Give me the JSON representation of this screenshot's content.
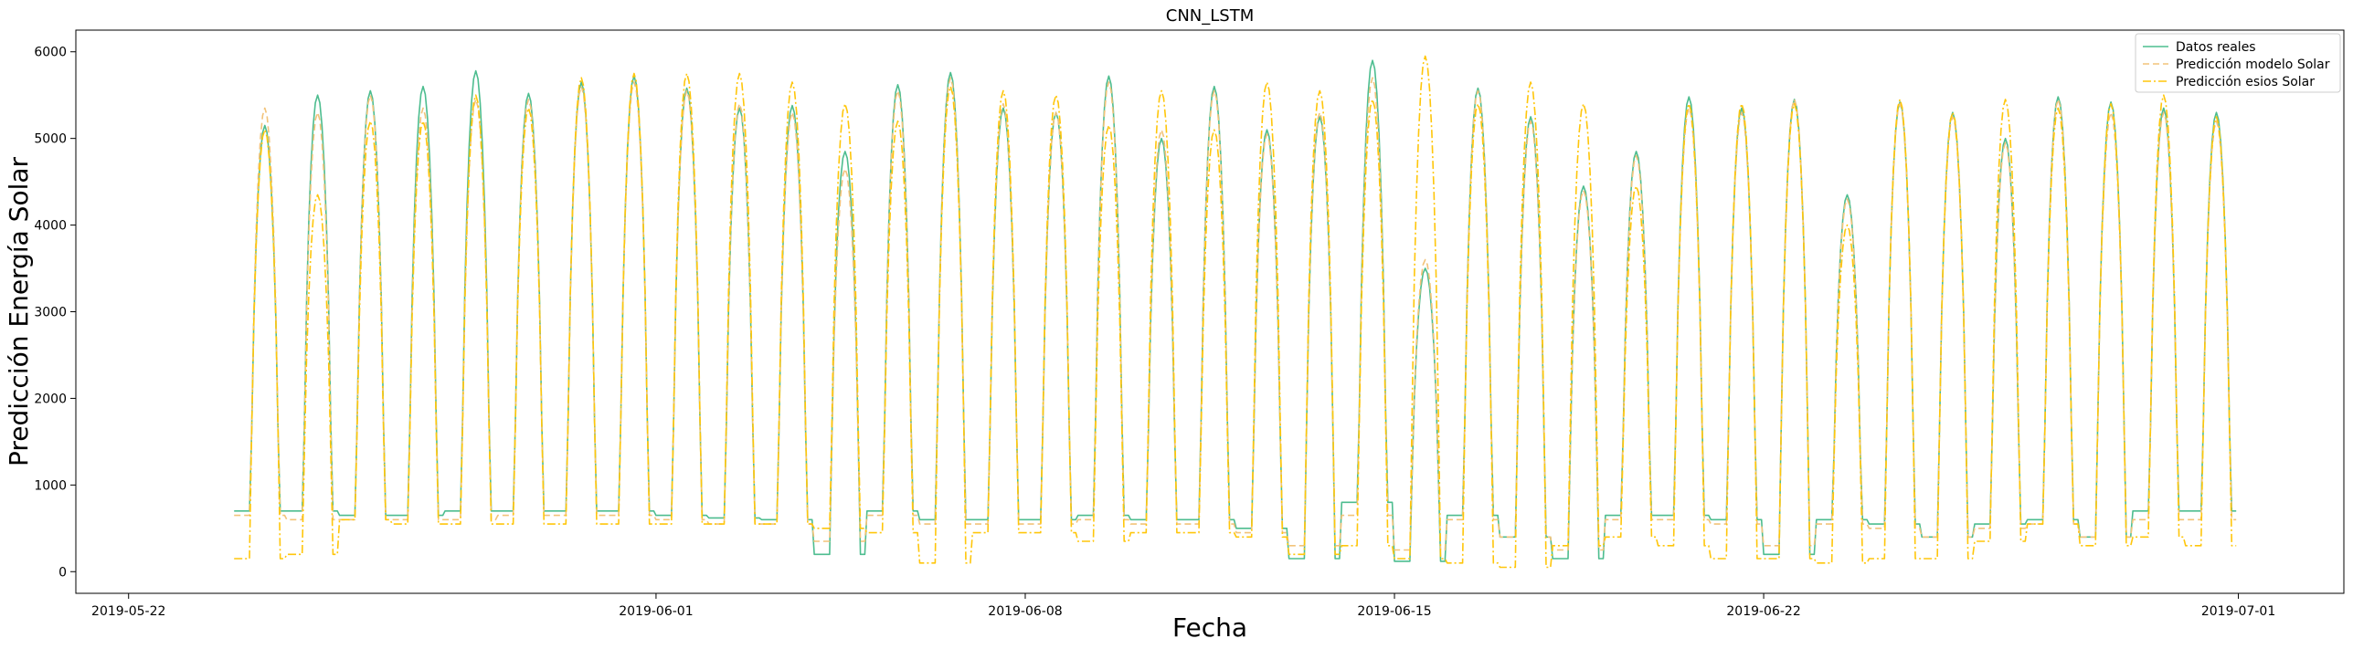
{
  "chart_data": {
    "type": "line",
    "title": "CNN_LSTM",
    "xlabel": "Fecha",
    "ylabel": "Predicción Energía Solar",
    "xlim": [
      "2019-05-21",
      "2019-07-03"
    ],
    "ylim": [
      -250,
      6250
    ],
    "x_ticks": [
      "2019-05-22",
      "2019-06-01",
      "2019-06-08",
      "2019-06-15",
      "2019-06-22",
      "2019-07-01"
    ],
    "y_ticks": [
      0,
      1000,
      2000,
      3000,
      4000,
      5000,
      6000
    ],
    "x_range": [
      "2019-05-24",
      "2019-06-30"
    ],
    "sampling": "hourly",
    "legend_position": "top-right",
    "series": [
      {
        "name": "Datos reales",
        "color": "#4dbd8f",
        "style": "solid",
        "daily_peaks": [
          5150,
          5500,
          5550,
          5600,
          5780,
          5520,
          5650,
          5720,
          5580,
          5350,
          5380,
          4850,
          5620,
          5760,
          5350,
          5300,
          5720,
          5000,
          5600,
          5100,
          5250,
          5900,
          3500,
          5580,
          5250,
          4450,
          4850,
          5480,
          5350,
          5450,
          4350,
          5420,
          5300,
          5000,
          5480,
          5420,
          5350,
          5300
        ],
        "night_values": [
          700,
          700,
          650,
          650,
          700,
          700,
          700,
          700,
          650,
          620,
          600,
          200,
          700,
          600,
          600,
          600,
          650,
          600,
          600,
          500,
          150,
          800,
          120,
          650,
          400,
          150,
          650,
          650,
          600,
          200,
          600,
          550,
          400,
          550,
          600,
          400,
          700,
          700
        ]
      },
      {
        "name": "Predicción modelo Solar",
        "color": "#f2c37a",
        "style": "dashed",
        "daily_peaks": [
          5350,
          5300,
          5500,
          5350,
          5450,
          5450,
          5600,
          5650,
          5550,
          5400,
          5300,
          4650,
          5550,
          5700,
          5400,
          5300,
          5650,
          5100,
          5550,
          5050,
          5300,
          5700,
          3600,
          5550,
          5200,
          4400,
          4800,
          5350,
          5300,
          5450,
          4300,
          5400,
          5250,
          4950,
          5450,
          5300,
          5300,
          5200
        ],
        "night_values": [
          650,
          600,
          600,
          600,
          600,
          650,
          650,
          650,
          600,
          550,
          550,
          350,
          650,
          550,
          550,
          550,
          600,
          550,
          550,
          450,
          300,
          650,
          250,
          600,
          400,
          250,
          600,
          600,
          550,
          300,
          550,
          500,
          400,
          500,
          550,
          400,
          600,
          600
        ]
      },
      {
        "name": "Predicción esios Solar",
        "color": "#ffc60b",
        "style": "dashdot",
        "daily_peaks": [
          5100,
          4350,
          5200,
          5200,
          5500,
          5350,
          5700,
          5750,
          5750,
          5750,
          5650,
          5400,
          5200,
          5600,
          5550,
          5500,
          5150,
          5550,
          5100,
          5650,
          5550,
          5450,
          5950,
          5400,
          5650,
          5400,
          4450,
          5400,
          5400,
          5400,
          4000,
          5450,
          5300,
          5450,
          5350,
          5400,
          5500,
          5250
        ],
        "night_values": [
          150,
          200,
          600,
          550,
          550,
          550,
          550,
          550,
          550,
          550,
          550,
          500,
          450,
          100,
          450,
          450,
          350,
          450,
          450,
          400,
          200,
          300,
          150,
          100,
          50,
          300,
          400,
          300,
          150,
          150,
          100,
          150,
          150,
          350,
          550,
          300,
          400,
          300
        ]
      }
    ]
  }
}
